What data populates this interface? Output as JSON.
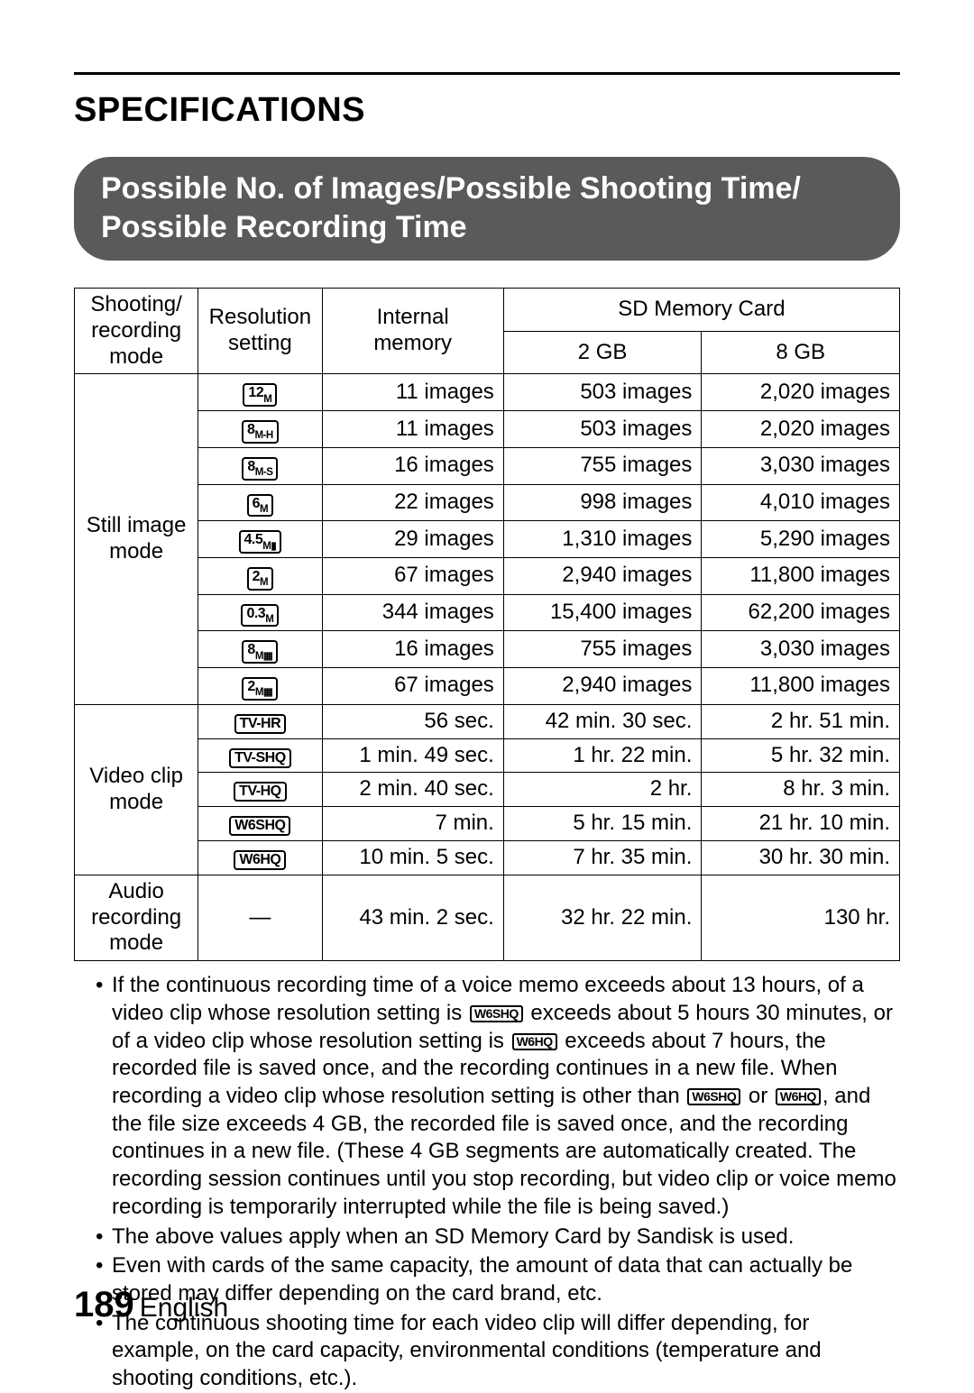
{
  "title": "SPECIFICATIONS",
  "banner_line1": "Possible No. of Images/Possible Shooting Time/",
  "banner_line2": "Possible Recording Time",
  "headers": {
    "mode": "Shooting/\nrecording\nmode",
    "res": "Resolution\nsetting",
    "internal": "Internal\nmemory",
    "sd": "SD Memory Card",
    "sd2": "2 GB",
    "sd8": "8 GB"
  },
  "groups": {
    "still": "Still image\nmode",
    "video": "Video clip\nmode",
    "audio": "Audio\nrecording\nmode"
  },
  "still_rows": [
    {
      "res": "12M",
      "internal": "11 images",
      "c2": "503 images",
      "c8": "2,020 images"
    },
    {
      "res": "8M-H",
      "internal": "11 images",
      "c2": "503 images",
      "c8": "2,020 images"
    },
    {
      "res": "8M-S",
      "internal": "16 images",
      "c2": "755 images",
      "c8": "3,030 images"
    },
    {
      "res": "6M",
      "internal": "22 images",
      "c2": "998 images",
      "c8": "4,010 images"
    },
    {
      "res": "4.5M▮",
      "internal": "29 images",
      "c2": "1,310 images",
      "c8": "5,290 images"
    },
    {
      "res": "2M",
      "internal": "67 images",
      "c2": "2,940 images",
      "c8": "11,800 images"
    },
    {
      "res": "0.3M",
      "internal": "344 images",
      "c2": "15,400 images",
      "c8": "62,200 images"
    },
    {
      "res": "8M▦",
      "internal": "16 images",
      "c2": "755 images",
      "c8": "3,030 images"
    },
    {
      "res": "2M▦",
      "internal": "67 images",
      "c2": "2,940 images",
      "c8": "11,800 images"
    }
  ],
  "video_rows": [
    {
      "res": "TV-HR",
      "internal": "56 sec.",
      "c2": "42 min. 30 sec.",
      "c8": "2 hr. 51 min."
    },
    {
      "res": "TV-SHQ",
      "internal": "1 min. 49 sec.",
      "c2": "1 hr. 22 min.",
      "c8": "5 hr. 32 min."
    },
    {
      "res": "TV-HQ",
      "internal": "2 min. 40 sec.",
      "c2": "2 hr.",
      "c8": "8 hr. 3 min."
    },
    {
      "res": "W6SHQ",
      "internal": "7 min.",
      "c2": "5 hr. 15 min.",
      "c8": "21 hr. 10 min."
    },
    {
      "res": "W6HQ",
      "internal": "10 min. 5 sec.",
      "c2": "7 hr. 35 min.",
      "c8": "30 hr. 30 min."
    }
  ],
  "audio_row": {
    "res": "—",
    "internal": "43 min. 2 sec.",
    "c2": "32 hr. 22 min.",
    "c8": "130 hr."
  },
  "notes": {
    "n1a": "If the continuous recording time of a voice memo exceeds about 13 hours, of a video clip whose resolution setting is ",
    "n1b": " exceeds about 5 hours 30 minutes, or of a video clip whose resolution setting is ",
    "n1c": " exceeds about 7 hours, the recorded file is saved once, and the recording continues in a new file. When recording a video clip whose resolution setting is other than ",
    "n1d": " or ",
    "n1e": ", and the file size exceeds 4 GB, the recorded file is saved once, and the recording continues in a new file. (These 4 GB segments are automatically created. The recording session continues until you stop recording, but video clip or voice memo recording is temporarily interrupted while the file is being saved.)",
    "i1": "W6SHQ",
    "i2": "W6HQ",
    "i3": "W6SHQ",
    "i4": "W6HQ",
    "n2": "The above values apply when an SD Memory Card by Sandisk is used.",
    "n3": "Even with cards of the same capacity, the amount of data that can actually be stored may differ depending on the card brand, etc.",
    "n4": "The continuous shooting time for each video clip will differ depending, for example, on the card capacity, environmental conditions (temperature and shooting conditions, etc.)."
  },
  "page_number": "189",
  "page_lang": "English",
  "col_widths": {
    "mode": "15%",
    "res": "15%",
    "internal": "22%",
    "c2": "24%",
    "c8": "24%"
  }
}
